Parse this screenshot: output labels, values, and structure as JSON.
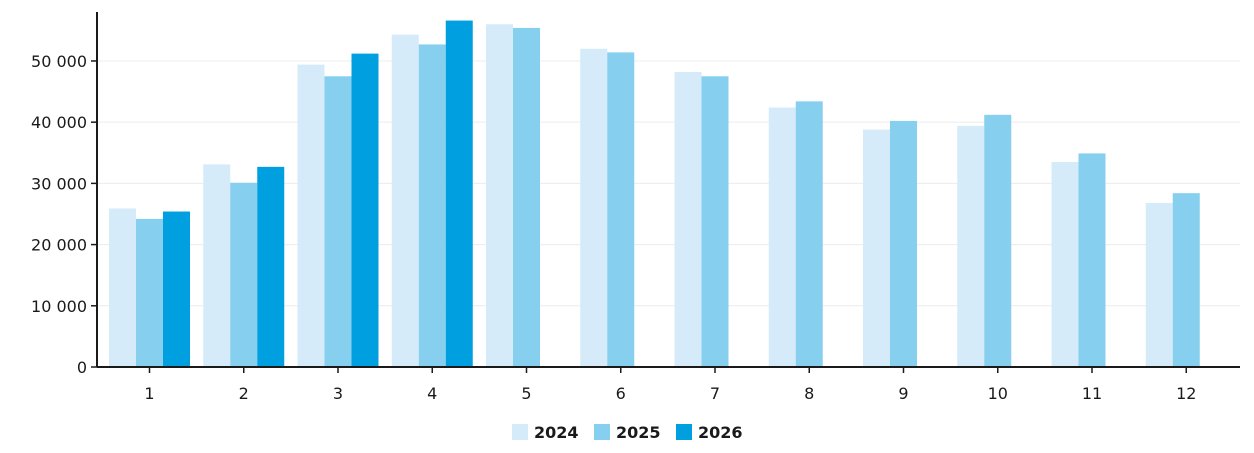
{
  "chart_data": {
    "type": "bar",
    "categories": [
      "1",
      "2",
      "3",
      "4",
      "5",
      "6",
      "7",
      "8",
      "9",
      "10",
      "11",
      "12"
    ],
    "series": [
      {
        "name": "2024",
        "color": "#d6ebf9",
        "values": [
          25900,
          33100,
          49400,
          54300,
          56000,
          52000,
          48200,
          42400,
          38800,
          39400,
          33500,
          26800
        ]
      },
      {
        "name": "2025",
        "color": "#87cfee",
        "values": [
          24200,
          30100,
          47500,
          52700,
          55400,
          51400,
          47500,
          43400,
          40200,
          41200,
          34900,
          28400
        ]
      },
      {
        "name": "2026",
        "color": "#009fe0",
        "values": [
          25400,
          32700,
          51200,
          56600,
          null,
          null,
          null,
          null,
          null,
          null,
          null,
          null
        ]
      }
    ],
    "y_ticks": [
      0,
      10000,
      20000,
      30000,
      40000,
      50000
    ],
    "y_tick_labels": [
      "0",
      "10 000",
      "20 000",
      "30 000",
      "40 000",
      "50 000"
    ],
    "ylim": [
      0,
      58000
    ],
    "grid": true,
    "legend_position": "bottom-center",
    "title": "",
    "xlabel": "",
    "ylabel": ""
  }
}
